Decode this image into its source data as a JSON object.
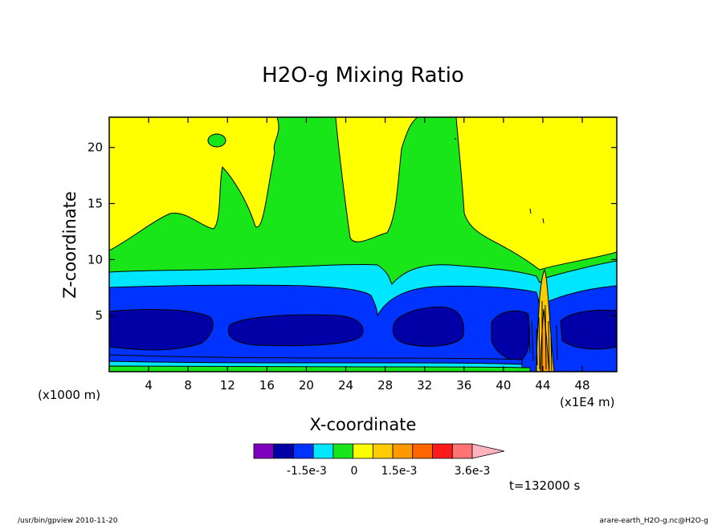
{
  "chart_data": {
    "type": "heatmap",
    "title": "H2O-g Mixing Ratio",
    "xlabel": "X-coordinate",
    "ylabel": "Z-coordinate",
    "x_unit_left": "(x1000 m)",
    "x_unit_right": "(x1E4 m)",
    "xlim": [
      0,
      51.5
    ],
    "ylim": [
      0,
      22.7
    ],
    "xticks": [
      4,
      8,
      12,
      16,
      20,
      24,
      28,
      32,
      36,
      40,
      44,
      48
    ],
    "yticks": [
      5,
      10,
      15,
      20
    ],
    "colorbar": {
      "colors": [
        "#7f00bf",
        "#0000a6",
        "#0033ff",
        "#00e6ff",
        "#19e619",
        "#ffff00",
        "#ffcc00",
        "#ff9900",
        "#ff6600",
        "#ff1a1a",
        "#ff7373",
        "#ffb3bf"
      ],
      "labels": [
        "-1.5e-3",
        "0",
        "1.5e-3",
        "3.6e-3"
      ],
      "extend": "max"
    },
    "time_label": "t=132000 s",
    "layers": [
      {
        "level": "yellow",
        "color": "#ffff00",
        "description": "background upper region"
      },
      {
        "level": "green",
        "color": "#19e619",
        "boundary_z_at_x0": 10.8
      },
      {
        "level": "cyan",
        "color": "#00e6ff",
        "boundary_z_at_x0": 9.0
      },
      {
        "level": "blue",
        "color": "#0033ff",
        "boundary_z_at_x0": 7.6
      },
      {
        "level": "darkblue",
        "color": "#0000a6",
        "core_z_range": [
          2.5,
          5.6
        ]
      }
    ],
    "disturbance_x": 43.8
  },
  "footer": {
    "left": "/usr/bin/gpview   2010-11-20",
    "right": "arare-earth_H2O-g.nc@H2O-g"
  },
  "colors": {
    "frame": "#000000",
    "contour": "#000000"
  }
}
